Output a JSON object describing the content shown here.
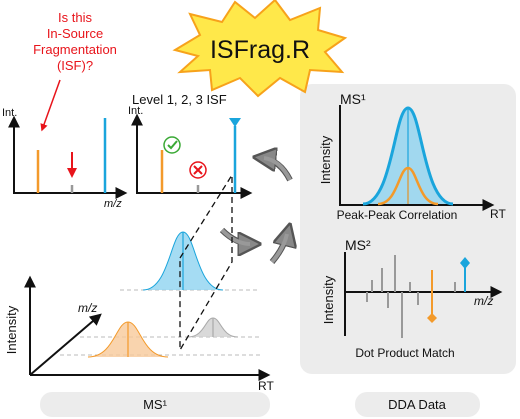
{
  "title": "ISFrag.R",
  "question": [
    "Is this",
    "In-Source",
    "Fragmentation",
    "(ISF)?"
  ],
  "level_label": "Level 1, 2, 3 ISF",
  "plot_left": {
    "y_label": "Int.",
    "x_label": "m/z"
  },
  "plot_middle": {
    "y_label": "Int."
  },
  "ms1_panel": {
    "title": "MS¹",
    "y_label": "Intensity",
    "x_label": "RT",
    "caption": "Peak-Peak Correlation"
  },
  "ms2_panel": {
    "title": "MS²",
    "y_label": "Intensity",
    "x_label": "m/z",
    "caption": "Dot Product Match"
  },
  "rt_plot": {
    "y_label": "Intensity",
    "depth_label": "m/z",
    "x_label": "RT"
  },
  "pills": [
    "MS¹",
    "DDA Data"
  ]
}
